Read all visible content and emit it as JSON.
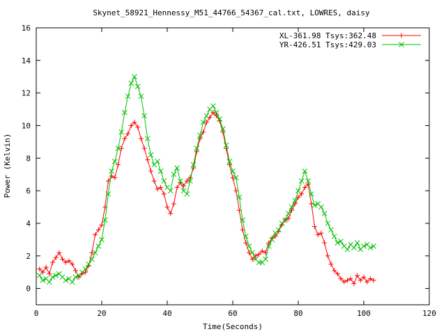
{
  "chart_data": {
    "type": "line",
    "title": "Skynet_58921_Hennessy_M51_44766_54367_cal.txt, LOWRES, daisy",
    "xlabel": "Time(Seconds)",
    "ylabel": "Power (Kelvin)",
    "xlim": [
      0,
      120
    ],
    "ylim": [
      -1,
      16
    ],
    "xticks": [
      0,
      20,
      40,
      60,
      80,
      100,
      120
    ],
    "yticks": [
      0,
      2,
      4,
      6,
      8,
      10,
      12,
      14,
      16
    ],
    "grid": false,
    "legend_position": "top-right",
    "series": [
      {
        "name": "XL-361.98 Tsys:362.48",
        "color": "#ff0000",
        "marker": "plus",
        "x": [
          1,
          2,
          3,
          4,
          5,
          6,
          7,
          8,
          9,
          10,
          11,
          12,
          13,
          14,
          15,
          16,
          17,
          18,
          19,
          20,
          21,
          22,
          23,
          24,
          25,
          26,
          27,
          28,
          29,
          30,
          31,
          32,
          33,
          34,
          35,
          36,
          37,
          38,
          39,
          40,
          41,
          42,
          43,
          44,
          45,
          46,
          47,
          48,
          49,
          50,
          51,
          52,
          53,
          54,
          55,
          56,
          57,
          58,
          59,
          60,
          61,
          62,
          63,
          64,
          65,
          66,
          67,
          68,
          69,
          70,
          71,
          72,
          73,
          74,
          75,
          76,
          77,
          78,
          79,
          80,
          81,
          82,
          83,
          84,
          85,
          86,
          87,
          88,
          89,
          90,
          91,
          92,
          93,
          94,
          95,
          96,
          97,
          98,
          99,
          100,
          101,
          102,
          103
        ],
        "y": [
          1.2,
          1.0,
          1.3,
          0.9,
          1.6,
          1.9,
          2.2,
          1.8,
          1.6,
          1.7,
          1.5,
          1.1,
          0.7,
          0.9,
          1.0,
          1.4,
          2.2,
          3.3,
          3.6,
          3.9,
          5.0,
          6.6,
          6.9,
          6.8,
          7.6,
          8.6,
          9.2,
          9.5,
          10.0,
          10.2,
          9.9,
          9.2,
          8.6,
          7.9,
          7.2,
          6.6,
          6.1,
          6.2,
          5.8,
          5.0,
          4.6,
          5.2,
          6.2,
          6.5,
          6.3,
          6.6,
          6.8,
          7.4,
          8.4,
          9.2,
          9.6,
          10.2,
          10.5,
          10.8,
          10.6,
          10.3,
          9.6,
          8.6,
          7.6,
          6.8,
          6.0,
          4.8,
          3.6,
          2.8,
          2.2,
          1.8,
          2.0,
          2.1,
          2.3,
          2.2,
          2.8,
          3.1,
          3.2,
          3.5,
          3.9,
          4.2,
          4.3,
          4.8,
          5.2,
          5.6,
          5.8,
          6.2,
          6.4,
          5.2,
          3.8,
          3.3,
          3.4,
          2.8,
          2.0,
          1.5,
          1.1,
          0.9,
          0.6,
          0.4,
          0.5,
          0.6,
          0.3,
          0.8,
          0.5,
          0.7,
          0.4,
          0.6,
          0.5
        ]
      },
      {
        "name": "YR-426.51 Tsys:429.03",
        "color": "#00c000",
        "marker": "cross",
        "x": [
          1,
          2,
          3,
          4,
          5,
          6,
          7,
          8,
          9,
          10,
          11,
          12,
          13,
          14,
          15,
          16,
          17,
          18,
          19,
          20,
          21,
          22,
          23,
          24,
          25,
          26,
          27,
          28,
          29,
          30,
          31,
          32,
          33,
          34,
          35,
          36,
          37,
          38,
          39,
          40,
          41,
          42,
          43,
          44,
          45,
          46,
          47,
          48,
          49,
          50,
          51,
          52,
          53,
          54,
          55,
          56,
          57,
          58,
          59,
          60,
          61,
          62,
          63,
          64,
          65,
          66,
          67,
          68,
          69,
          70,
          71,
          72,
          73,
          74,
          75,
          76,
          77,
          78,
          79,
          80,
          81,
          82,
          83,
          84,
          85,
          86,
          87,
          88,
          89,
          90,
          91,
          92,
          93,
          94,
          95,
          96,
          97,
          98,
          99,
          100,
          101,
          102,
          103
        ],
        "y": [
          0.8,
          0.5,
          0.6,
          0.4,
          0.7,
          0.8,
          0.9,
          0.7,
          0.5,
          0.6,
          0.4,
          0.7,
          0.8,
          1.0,
          1.2,
          1.5,
          1.8,
          2.2,
          2.6,
          3.0,
          4.2,
          5.8,
          7.2,
          7.8,
          8.6,
          9.6,
          10.8,
          11.8,
          12.6,
          13.0,
          12.4,
          11.8,
          10.6,
          9.2,
          8.2,
          7.6,
          7.8,
          7.2,
          6.6,
          6.2,
          6.0,
          7.0,
          7.4,
          6.6,
          6.0,
          5.8,
          6.6,
          7.6,
          8.6,
          9.4,
          10.2,
          10.6,
          11.0,
          11.2,
          10.8,
          10.4,
          9.8,
          8.8,
          7.8,
          7.2,
          6.8,
          5.6,
          4.2,
          3.2,
          2.6,
          2.2,
          1.8,
          1.6,
          1.6,
          1.8,
          2.6,
          3.0,
          3.4,
          3.6,
          4.0,
          4.2,
          4.6,
          5.0,
          5.4,
          6.0,
          6.6,
          7.2,
          6.6,
          5.8,
          5.1,
          5.2,
          5.0,
          4.6,
          4.0,
          3.6,
          3.2,
          2.8,
          2.9,
          2.6,
          2.4,
          2.7,
          2.5,
          2.8,
          2.4,
          2.6,
          2.7,
          2.5,
          2.6
        ]
      }
    ]
  }
}
